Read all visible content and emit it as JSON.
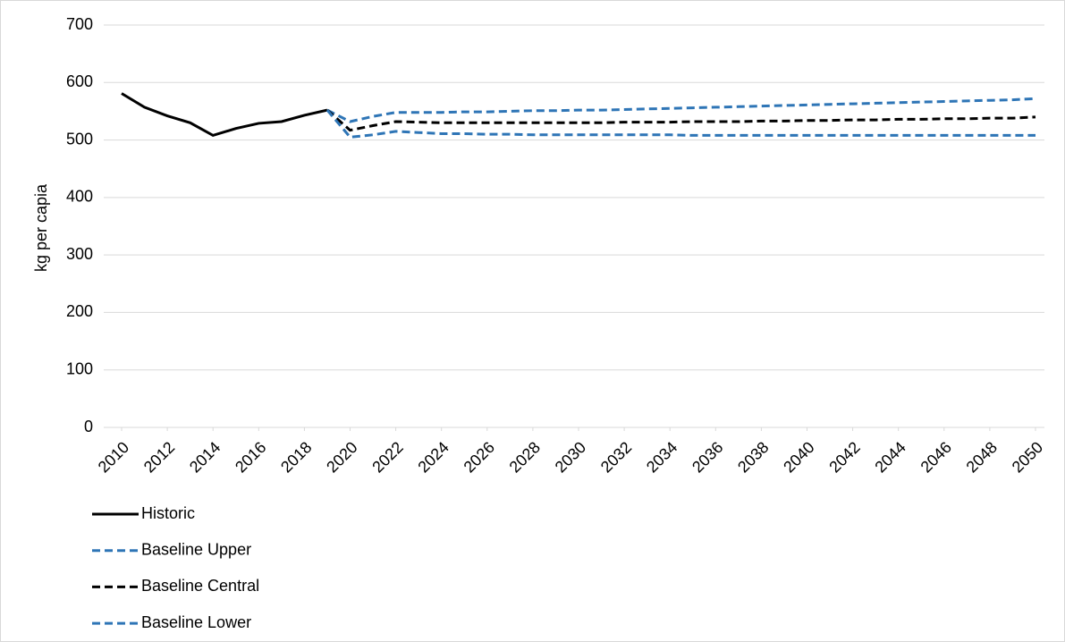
{
  "chart_data": {
    "type": "line",
    "y_label": "kg per capia",
    "x": [
      2010,
      2011,
      2012,
      2013,
      2014,
      2015,
      2016,
      2017,
      2018,
      2019,
      2020,
      2021,
      2022,
      2023,
      2024,
      2025,
      2026,
      2027,
      2028,
      2029,
      2030,
      2031,
      2032,
      2033,
      2034,
      2035,
      2036,
      2037,
      2038,
      2039,
      2040,
      2041,
      2042,
      2043,
      2044,
      2045,
      2046,
      2047,
      2048,
      2049,
      2050
    ],
    "xlim": [
      2010,
      2050
    ],
    "xticks": [
      2010,
      2012,
      2014,
      2016,
      2018,
      2020,
      2022,
      2024,
      2026,
      2028,
      2030,
      2032,
      2034,
      2036,
      2038,
      2040,
      2042,
      2044,
      2046,
      2048,
      2050
    ],
    "ylim": [
      0,
      700
    ],
    "yticks": [
      0,
      100,
      200,
      300,
      400,
      500,
      600,
      700
    ],
    "grid": true,
    "legend": "bottom-left",
    "series": [
      {
        "name": "Historic",
        "color": "#000000",
        "dashed": false,
        "values": [
          581,
          557,
          542,
          530,
          508,
          520,
          529,
          532,
          543,
          552,
          null,
          null,
          null,
          null,
          null,
          null,
          null,
          null,
          null,
          null,
          null,
          null,
          null,
          null,
          null,
          null,
          null,
          null,
          null,
          null,
          null,
          null,
          null,
          null,
          null,
          null,
          null,
          null,
          null,
          null,
          null
        ]
      },
      {
        "name": "Baseline Upper",
        "color": "#2e75b6",
        "dashed": true,
        "values": [
          null,
          null,
          null,
          null,
          null,
          null,
          null,
          null,
          null,
          552,
          532,
          541,
          548,
          548,
          548,
          549,
          549,
          550,
          551,
          551,
          552,
          552,
          553,
          554,
          555,
          556,
          557,
          558,
          559,
          560,
          561,
          562,
          563,
          564,
          565,
          566,
          567,
          568,
          569,
          570,
          572
        ]
      },
      {
        "name": "Baseline Central",
        "color": "#000000",
        "dashed": true,
        "values": [
          null,
          null,
          null,
          null,
          null,
          null,
          null,
          null,
          null,
          552,
          517,
          525,
          532,
          531,
          530,
          530,
          530,
          530,
          530,
          530,
          530,
          530,
          531,
          531,
          531,
          532,
          532,
          532,
          533,
          533,
          534,
          534,
          535,
          535,
          536,
          536,
          537,
          537,
          538,
          538,
          540
        ]
      },
      {
        "name": "Baseline Lower",
        "color": "#2e75b6",
        "dashed": true,
        "values": [
          null,
          null,
          null,
          null,
          null,
          null,
          null,
          null,
          null,
          552,
          505,
          509,
          515,
          513,
          511,
          511,
          510,
          510,
          509,
          509,
          509,
          509,
          509,
          509,
          509,
          508,
          508,
          508,
          508,
          508,
          508,
          508,
          508,
          508,
          508,
          508,
          508,
          508,
          508,
          508,
          508
        ]
      }
    ]
  }
}
